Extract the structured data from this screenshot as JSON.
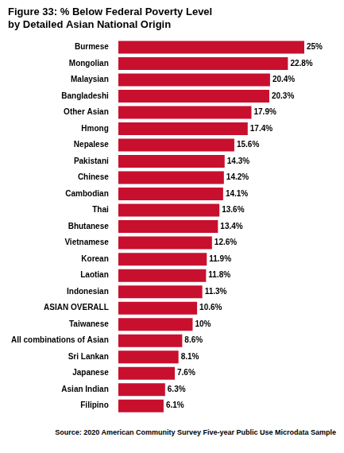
{
  "chart_data": {
    "type": "bar",
    "title": [
      "Figure 33: % Below Federal Poverty Level",
      "by Detailed Asian National Origin"
    ],
    "annotations": [
      "Source: 2020 American Community Survey Five-year Public Use Microdata Sample"
    ],
    "categories": [
      "Burmese",
      "Mongolian",
      "Malaysian",
      "Bangladeshi",
      "Other Asian",
      "Hmong",
      "Nepalese",
      "Pakistani",
      "Chinese",
      "Cambodian",
      "Thai",
      "Bhutanese",
      "Vietnamese",
      "Korean",
      "Laotian",
      "Indonesian",
      "ASIAN OVERALL",
      "Taiwanese",
      "All combinations of Asian",
      "Sri Lankan",
      "Japanese",
      "Asian Indian",
      "Filipino"
    ],
    "values": [
      25,
      22.8,
      20.4,
      20.3,
      17.9,
      17.4,
      15.6,
      14.3,
      14.2,
      14.1,
      13.6,
      13.4,
      12.6,
      11.9,
      11.8,
      11.3,
      10.6,
      10,
      8.6,
      8.1,
      7.6,
      6.3,
      6.1
    ],
    "value_labels": [
      "25%",
      "22.8%",
      "20.4%",
      "20.3%",
      "17.9%",
      "17.4%",
      "15.6%",
      "14.3%",
      "14.2%",
      "14.1%",
      "13.6%",
      "13.4%",
      "12.6%",
      "11.9%",
      "11.8%",
      "11.3%",
      "10.6%",
      "10%",
      "8.6%",
      "8.1%",
      "7.6%",
      "6.3%",
      "6.1%"
    ],
    "color": "#c8102e",
    "orientation": "horizontal",
    "data_labels": true,
    "tick_labels": "y",
    "grid": false
  }
}
